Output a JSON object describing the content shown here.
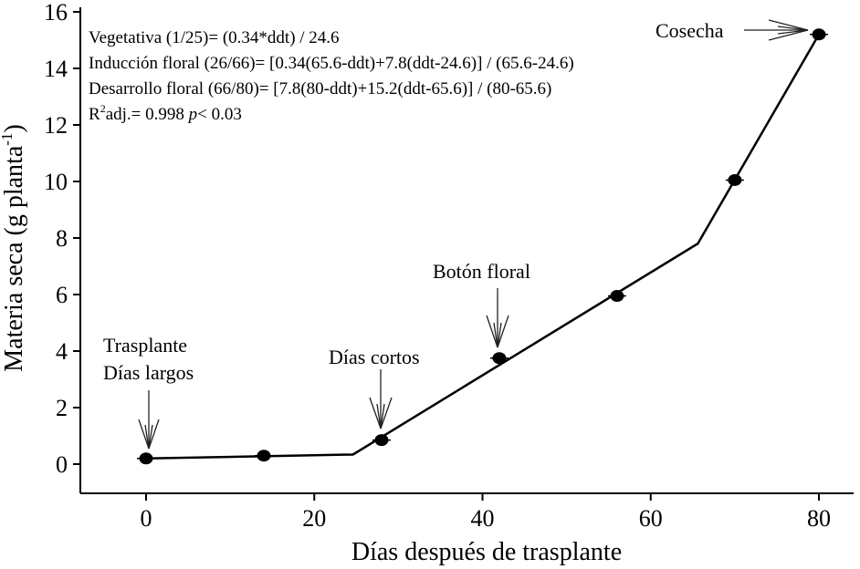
{
  "chart_data": {
    "type": "line",
    "xlabel": "Días después de trasplante",
    "ylabel_main": "Materia seca (g planta",
    "ylabel_sup": "-1",
    "ylabel_close": ")",
    "xlim": [
      -8,
      84
    ],
    "ylim": [
      -1,
      16
    ],
    "xticks": [
      0,
      20,
      40,
      60,
      80
    ],
    "yticks": [
      0,
      2,
      4,
      6,
      8,
      10,
      12,
      14,
      16
    ],
    "series": [
      {
        "points": [
          {
            "x": 0,
            "y": 0.2
          },
          {
            "x": 14,
            "y": 0.3
          },
          {
            "x": 28,
            "y": 0.85
          },
          {
            "x": 42,
            "y": 3.75
          },
          {
            "x": 56,
            "y": 5.95
          },
          {
            "x": 70,
            "y": 10.05
          },
          {
            "x": 80,
            "y": 15.2
          }
        ]
      }
    ],
    "fit_line": [
      {
        "x": 0,
        "y": 0.2
      },
      {
        "x": 24.6,
        "y": 0.34
      },
      {
        "x": 65.6,
        "y": 7.8
      },
      {
        "x": 80,
        "y": 15.2
      }
    ],
    "equations": {
      "veg_label": "Vegetativa (1/25)= (0.34*ddt) / 24.6",
      "ind_label": "Inducción floral (26/66)= [0.34(65.6-ddt)+7.8(ddt-24.6)] / (65.6-24.6)",
      "des_label": "Desarrollo floral (66/80)= [7.8(80-ddt)+15.2(ddt-65.6)] / (80-65.6)",
      "r2_prefix": "R",
      "r2_sup": "2",
      "r2_mid": "adj.= 0.998 ",
      "r2_p": "p",
      "r2_end": "< 0.03"
    },
    "annotations": {
      "trasplante": "Trasplante",
      "dias_largos": "Días largos",
      "dias_cortos": "Días cortos",
      "boton_floral": "Botón floral",
      "cosecha": "Cosecha"
    }
  }
}
